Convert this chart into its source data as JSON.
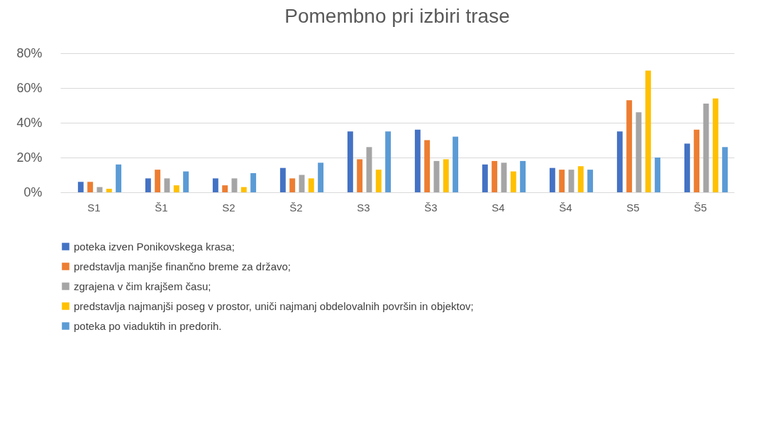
{
  "chart_data": {
    "type": "bar",
    "title": "Pomembno pri izbiri trase",
    "categories": [
      "S1",
      "Š1",
      "S2",
      "Š2",
      "S3",
      "Š3",
      "S4",
      "Š4",
      "S5",
      "Š5"
    ],
    "series": [
      {
        "name": "poteka izven Ponikovskega krasa;",
        "color": "#4472c4",
        "values": [
          6,
          8,
          8,
          14,
          35,
          36,
          16,
          14,
          35,
          28
        ]
      },
      {
        "name": "predstavlja manjše finančno breme za državo;",
        "color": "#ed7d31",
        "values": [
          6,
          13,
          4,
          8,
          19,
          30,
          18,
          13,
          53,
          36
        ]
      },
      {
        "name": "zgrajena v čim krajšem času;",
        "color": "#a5a5a5",
        "values": [
          3,
          8,
          8,
          10,
          26,
          18,
          17,
          13,
          46,
          51
        ]
      },
      {
        "name": "predstavlja najmanjši poseg v prostor, uniči najmanj obdelovalnih površin in objektov;",
        "color": "#ffc000",
        "values": [
          2,
          4,
          3,
          8,
          13,
          19,
          12,
          15,
          70,
          54
        ]
      },
      {
        "name": "poteka po viaduktih in predorih.",
        "color": "#5b9bd5",
        "values": [
          16,
          12,
          11,
          17,
          35,
          32,
          18,
          13,
          20,
          26
        ]
      }
    ],
    "ylim": [
      0,
      80
    ],
    "yticks": [
      {
        "value": 0,
        "label": "0%"
      },
      {
        "value": 20,
        "label": "20%"
      },
      {
        "value": 40,
        "label": "40%"
      },
      {
        "value": 60,
        "label": "60%"
      },
      {
        "value": 80,
        "label": "80%"
      }
    ],
    "grid": "y",
    "legend": "bottom"
  }
}
